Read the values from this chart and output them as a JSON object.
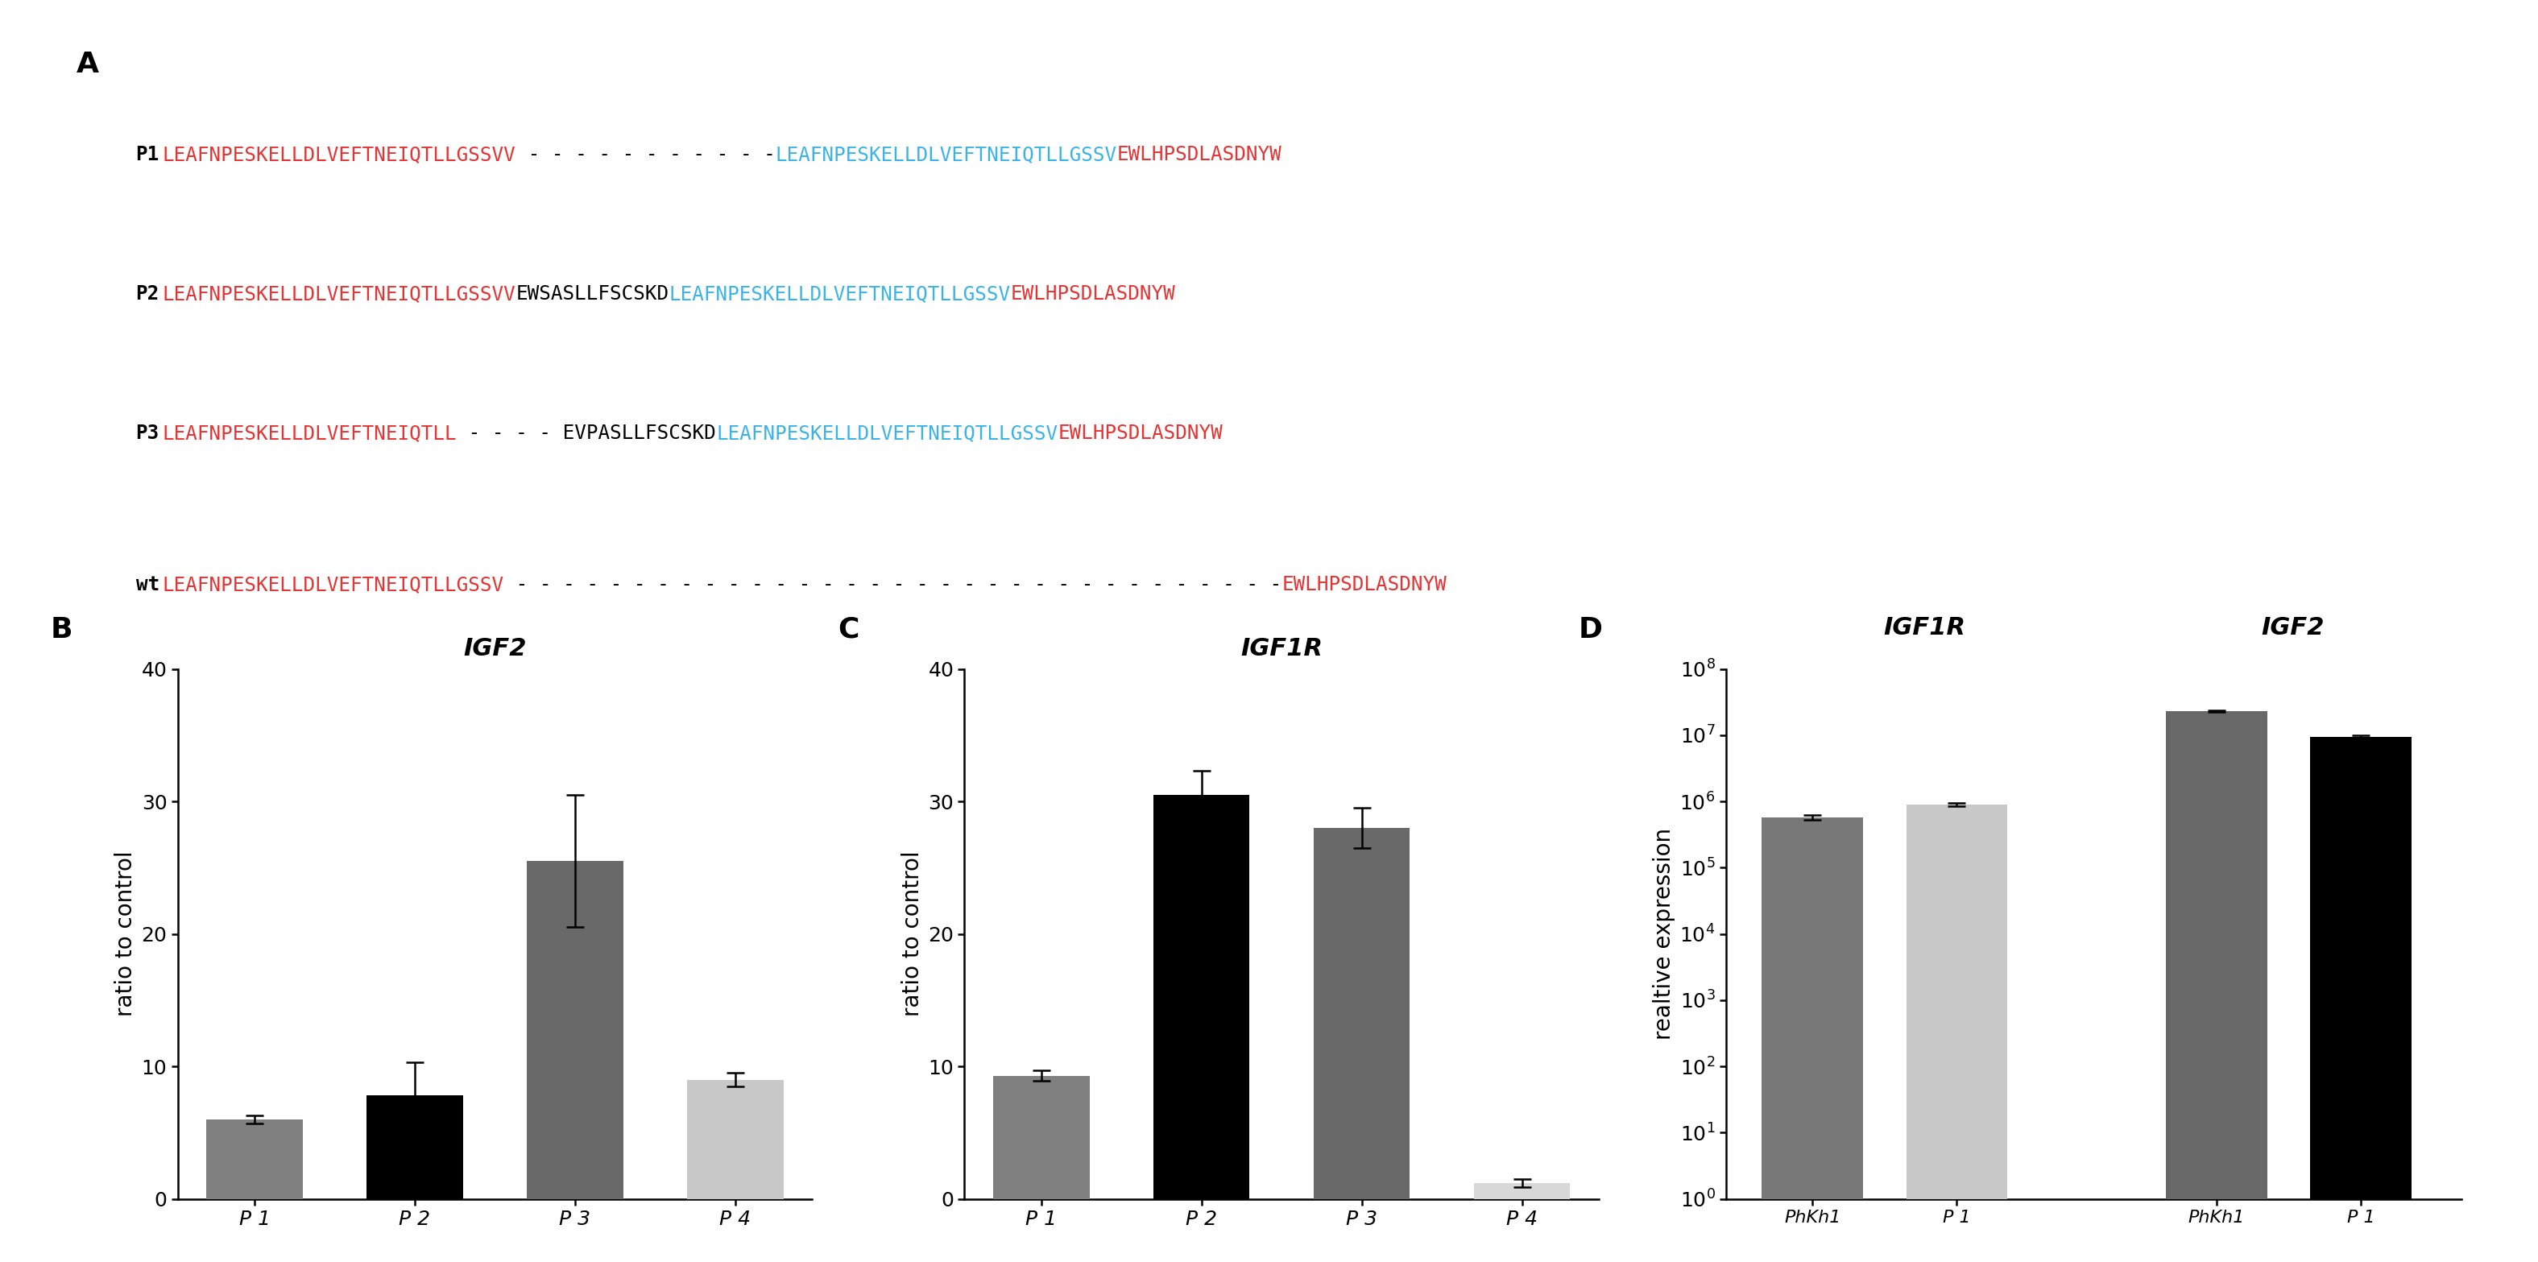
{
  "panel_A": {
    "rows": [
      {
        "label": "P1",
        "segments": [
          {
            "text": "LEAFNPESKELLDLVEFTNEIQTLLGSSVV",
            "color": "#e63333"
          },
          {
            "text": " - - - - - - - - - - -",
            "color": "#000000"
          },
          {
            "text": "LEAFNPESKELLDLVEFTNEIQTLLGSSV",
            "color": "#3ab4e8"
          },
          {
            "text": "EWLHPSDLASDNYW",
            "color": "#e63333"
          }
        ]
      },
      {
        "label": "P2",
        "segments": [
          {
            "text": "LEAFNPESKELLDLVEFTNEIQTLLGSSVV",
            "color": "#e63333"
          },
          {
            "text": "EWSASLLFSCSKD",
            "color": "#000000"
          },
          {
            "text": "LEAFNPESKELLDLVEFTNEIQTLLGSSV",
            "color": "#3ab4e8"
          },
          {
            "text": "EWLHPSDLASDNYW",
            "color": "#e63333"
          }
        ]
      },
      {
        "label": "P3",
        "segments": [
          {
            "text": "LEAFNPESKELLDLVEFTNEIQTLL",
            "color": "#e63333"
          },
          {
            "text": " - - - - EVPASLLFSCSKD",
            "color": "#000000"
          },
          {
            "text": "LEAFNPESKELLDLVEFTNEIQTLLGSSV",
            "color": "#3ab4e8"
          },
          {
            "text": "EWLHPSDLASDNYW",
            "color": "#e63333"
          }
        ]
      },
      {
        "label": "wt",
        "segments": [
          {
            "text": "LEAFNPESKELLDLVEFTNEIQTLLGSSV",
            "color": "#e63333"
          },
          {
            "text": " - - - - - - - - - - - - - - - - - - - - - - - - - - - - - - - - -",
            "color": "#000000"
          },
          {
            "text": "EWLHPSDLASDNYW",
            "color": "#e63333"
          }
        ]
      }
    ]
  },
  "panel_B": {
    "title": "IGF2",
    "ylabel": "ratio to control",
    "xlabel_labels": [
      "P 1",
      "P 2",
      "P 3",
      "P 4"
    ],
    "values": [
      6.0,
      7.8,
      25.5,
      9.0
    ],
    "errors": [
      0.3,
      2.5,
      5.0,
      0.5
    ],
    "colors": [
      "#808080",
      "#000000",
      "#696969",
      "#c8c8c8"
    ],
    "ylim": [
      0,
      40
    ],
    "yticks": [
      0,
      10,
      20,
      30,
      40
    ]
  },
  "panel_C": {
    "title": "IGF1R",
    "ylabel": "ratio to control",
    "xlabel_labels": [
      "P 1",
      "P 2",
      "P 3",
      "P 4"
    ],
    "values": [
      9.3,
      30.5,
      28.0,
      1.2
    ],
    "errors": [
      0.4,
      1.8,
      1.5,
      0.3
    ],
    "colors": [
      "#808080",
      "#000000",
      "#696969",
      "#d8d8d8"
    ],
    "ylim": [
      0,
      40
    ],
    "yticks": [
      0,
      10,
      20,
      30,
      40
    ]
  },
  "panel_D": {
    "title_left": "IGF1R",
    "title_right": "IGF2",
    "ylabel": "realtive expression",
    "xlabel_labels": [
      "PhKh1",
      "P 1",
      "PhKh1",
      "P 1"
    ],
    "values": [
      580000.0,
      900000.0,
      23000000.0,
      9500000.0
    ],
    "errors_low": [
      50000.0,
      50000.0,
      400000.0,
      300000.0
    ],
    "errors_high": [
      50000.0,
      50000.0,
      400000.0,
      300000.0
    ],
    "colors": [
      "#787878",
      "#c8c8c8",
      "#686868",
      "#000000"
    ],
    "ylim_log": [
      1.0,
      100000000.0
    ],
    "yticks_log": [
      1.0,
      10.0,
      100.0,
      1000.0,
      10000.0,
      100000.0,
      1000000.0,
      10000000.0,
      100000000.0
    ]
  },
  "background_color": "#ffffff",
  "label_fontsize": 20,
  "tick_fontsize": 18,
  "title_fontsize": 22,
  "seq_fontsize": 17.5,
  "panel_label_fontsize": 26
}
